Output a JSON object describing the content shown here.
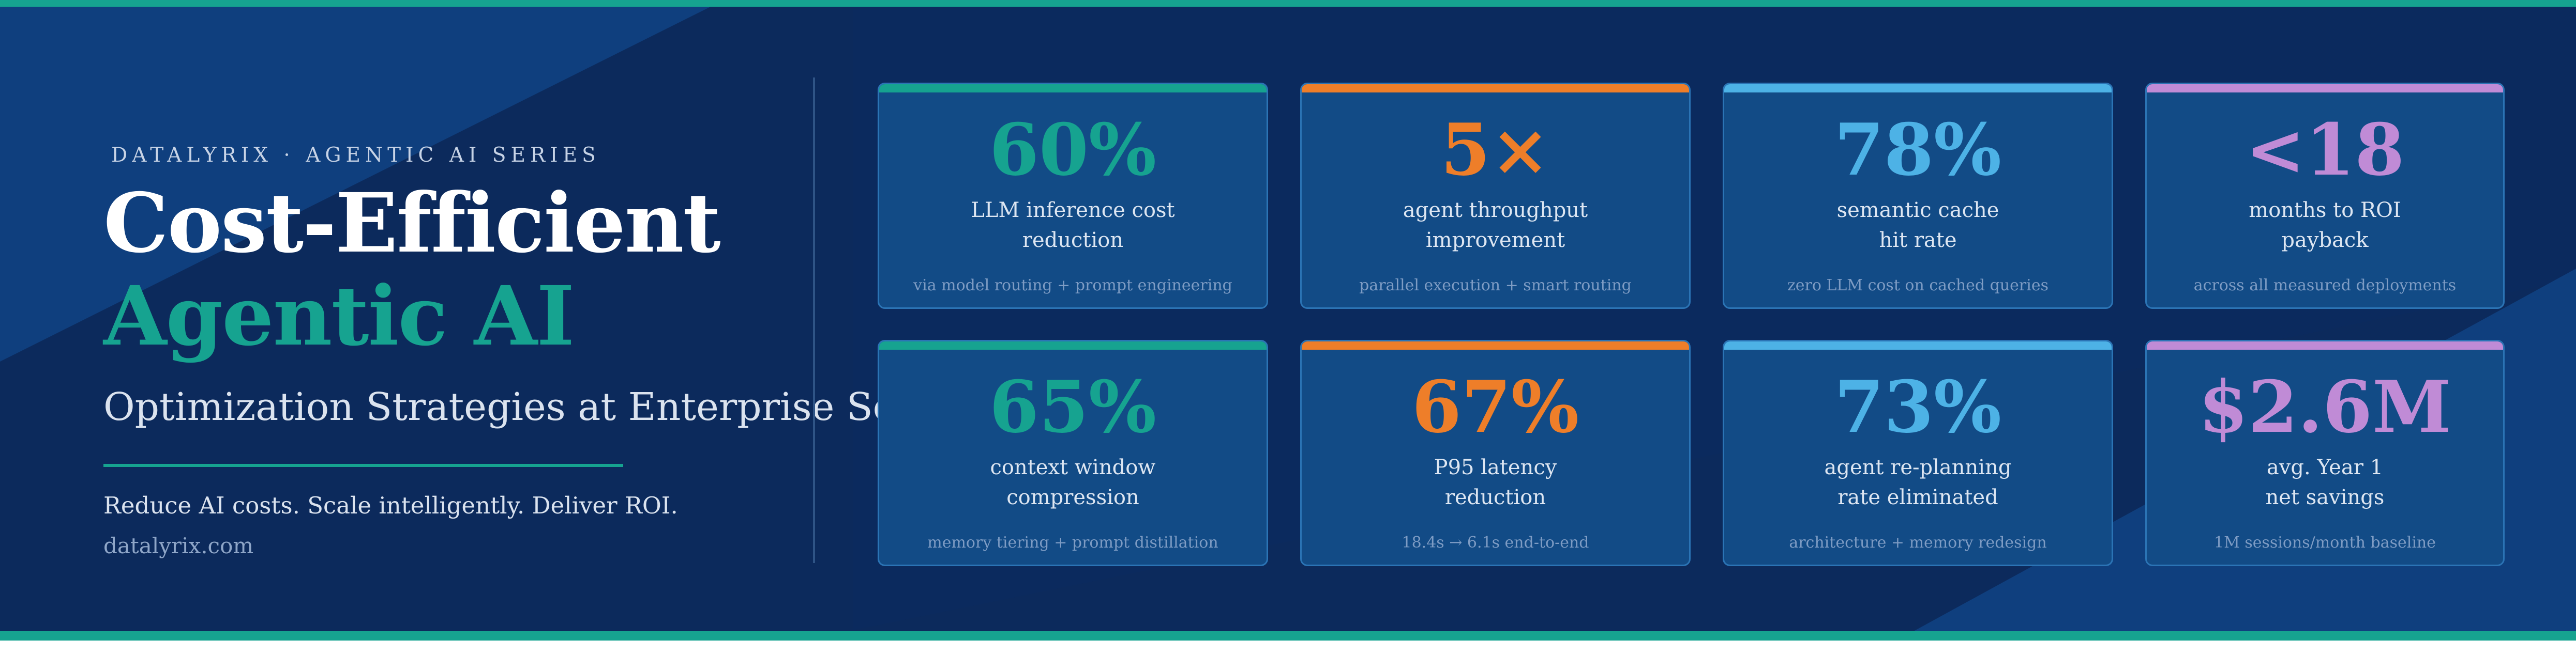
{
  "colors": {
    "teal": "#16a390",
    "orange": "#ee7e29",
    "blue": "#4db2e6",
    "purple": "#c08bd6",
    "background": "#0c2a5c",
    "card": "#124b86"
  },
  "header": {
    "series": "DATALYRIX · AGENTIC AI SERIES",
    "title_line1": "Cost-Efficient",
    "title_line2": "Agentic AI",
    "subtitle": "Optimization Strategies at Enterprise Scale",
    "tagline": "Reduce AI costs. Scale intelligently. Deliver ROI.",
    "website": "datalyrix.com"
  },
  "stats": [
    {
      "value": "60%",
      "label_line1": "LLM inference cost",
      "label_line2": "reduction",
      "note": "via model routing + prompt engineering",
      "accent": "teal"
    },
    {
      "value": "5×",
      "label_line1": "agent throughput",
      "label_line2": "improvement",
      "note": "parallel execution + smart routing",
      "accent": "orange"
    },
    {
      "value": "78%",
      "label_line1": "semantic cache",
      "label_line2": "hit rate",
      "note": "zero LLM cost on cached queries",
      "accent": "blue"
    },
    {
      "value": "<18",
      "label_line1": "months to ROI",
      "label_line2": "payback",
      "note": "across all measured deployments",
      "accent": "purple"
    },
    {
      "value": "65%",
      "label_line1": "context window",
      "label_line2": "compression",
      "note": "memory tiering + prompt distillation",
      "accent": "teal"
    },
    {
      "value": "67%",
      "label_line1": "P95 latency",
      "label_line2": "reduction",
      "note": "18.4s → 6.1s end-to-end",
      "accent": "orange"
    },
    {
      "value": "73%",
      "label_line1": "agent re-planning",
      "label_line2": "rate eliminated",
      "note": "architecture + memory redesign",
      "accent": "blue"
    },
    {
      "value": "$2.6M",
      "label_line1": "avg. Year 1",
      "label_line2": "net savings",
      "note": "1M sessions/month baseline",
      "accent": "purple"
    }
  ]
}
